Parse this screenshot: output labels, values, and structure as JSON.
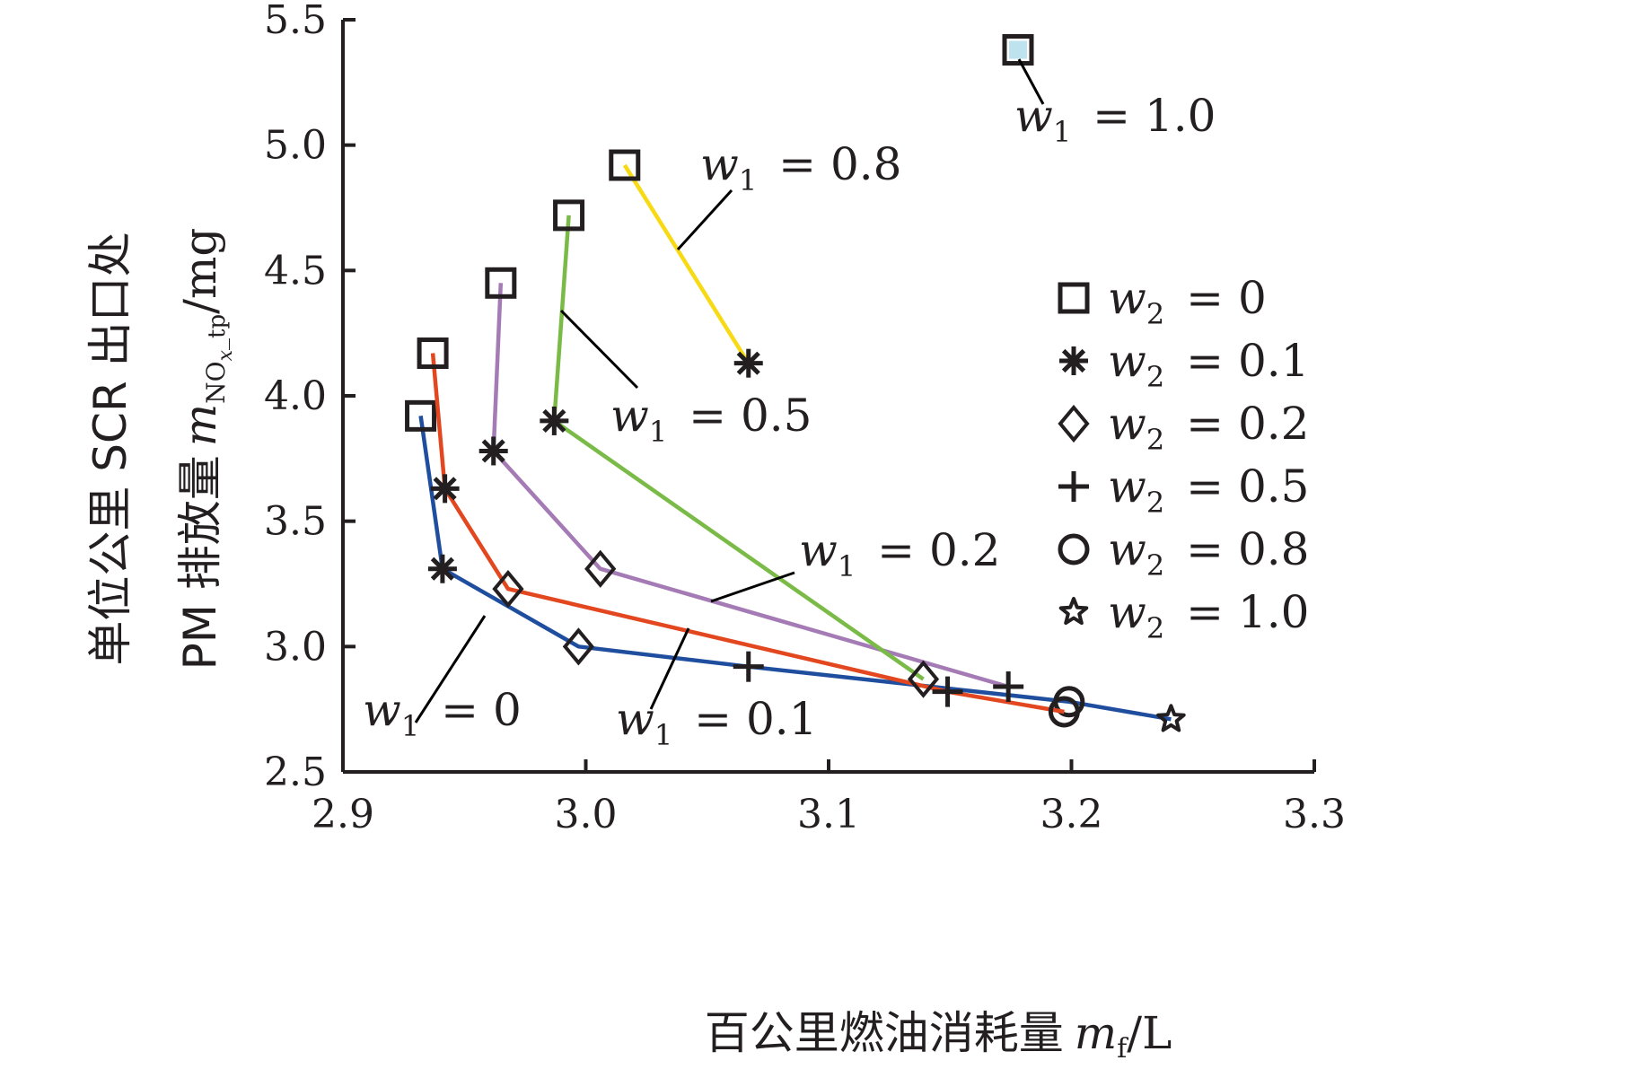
{
  "chart_data": {
    "type": "line",
    "xlabel": {
      "main": "百公里燃油消耗量",
      "var": "m",
      "sub": "f",
      "unit": "/L"
    },
    "ylabel": {
      "line1": "单位公里 SCR 出口处",
      "line2_main": "PM 排放量",
      "var": "m",
      "sub": "NO",
      "subsub": "x",
      "sub2": "_tp",
      "unit": "/mg"
    },
    "xlim": [
      2.9,
      3.3
    ],
    "ylim": [
      2.5,
      5.5
    ],
    "x_ticks": [
      2.9,
      3.0,
      3.1,
      3.2,
      3.3
    ],
    "y_ticks": [
      2.5,
      3.0,
      3.5,
      4.0,
      4.5,
      5.0,
      5.5
    ],
    "x_tick_labels": [
      "2.9",
      "3.0",
      "3.1",
      "3.2",
      "3.3"
    ],
    "y_tick_labels": [
      "2.5",
      "3.0",
      "3.5",
      "4.0",
      "4.5",
      "5.0",
      "5.5"
    ],
    "grid": false,
    "legend_position": "right",
    "legend": [
      {
        "marker": "square",
        "var": "w",
        "sub": "2",
        "text": "= 0"
      },
      {
        "marker": "asterisk",
        "var": "w",
        "sub": "2",
        "text": "= 0.1"
      },
      {
        "marker": "diamond",
        "var": "w",
        "sub": "2",
        "text": "= 0.2"
      },
      {
        "marker": "plus",
        "var": "w",
        "sub": "2",
        "text": "= 0.5"
      },
      {
        "marker": "circle",
        "var": "w",
        "sub": "2",
        "text": "= 0.8"
      },
      {
        "marker": "star",
        "var": "w",
        "sub": "2",
        "text": "= 1.0"
      }
    ],
    "series": [
      {
        "label": {
          "var": "w",
          "sub": "1",
          "text": "= 0"
        },
        "color": "#1f4e9e",
        "points": [
          {
            "x": 2.932,
            "y": 3.92,
            "marker": "square"
          },
          {
            "x": 2.941,
            "y": 3.31,
            "marker": "asterisk"
          },
          {
            "x": 2.997,
            "y": 3.0,
            "marker": "diamond"
          },
          {
            "x": 3.067,
            "y": 2.92,
            "marker": "plus"
          },
          {
            "x": 3.199,
            "y": 2.78,
            "marker": "circle"
          },
          {
            "x": 3.241,
            "y": 2.71,
            "marker": "star"
          }
        ]
      },
      {
        "label": {
          "var": "w",
          "sub": "1",
          "text": "= 0.1"
        },
        "color": "#e2471f",
        "points": [
          {
            "x": 2.937,
            "y": 4.17,
            "marker": "square"
          },
          {
            "x": 2.942,
            "y": 3.63,
            "marker": "asterisk"
          },
          {
            "x": 2.968,
            "y": 3.23,
            "marker": "diamond"
          },
          {
            "x": 3.149,
            "y": 2.82,
            "marker": "plus"
          },
          {
            "x": 3.197,
            "y": 2.74,
            "marker": "circle"
          }
        ]
      },
      {
        "label": {
          "var": "w",
          "sub": "1",
          "text": "= 0.2"
        },
        "color": "#a57bb6",
        "points": [
          {
            "x": 2.965,
            "y": 4.45,
            "marker": "square"
          },
          {
            "x": 2.962,
            "y": 3.78,
            "marker": "asterisk"
          },
          {
            "x": 3.006,
            "y": 3.31,
            "marker": "diamond"
          },
          {
            "x": 3.174,
            "y": 2.84,
            "marker": "plus"
          }
        ]
      },
      {
        "label": {
          "var": "w",
          "sub": "1",
          "text": "= 0.5"
        },
        "color": "#79bb46",
        "points": [
          {
            "x": 2.993,
            "y": 4.72,
            "marker": "square"
          },
          {
            "x": 2.987,
            "y": 3.9,
            "marker": "asterisk"
          },
          {
            "x": 3.139,
            "y": 2.87,
            "marker": "diamond"
          }
        ]
      },
      {
        "label": {
          "var": "w",
          "sub": "1",
          "text": "= 0.8"
        },
        "color": "#f7da14",
        "points": [
          {
            "x": 3.016,
            "y": 4.92,
            "marker": "square"
          },
          {
            "x": 3.067,
            "y": 4.13,
            "marker": "asterisk"
          }
        ]
      },
      {
        "label": {
          "var": "w",
          "sub": "1",
          "text": "= 1.0"
        },
        "color": "#2d8fb5",
        "points": [
          {
            "x": 3.178,
            "y": 5.38,
            "marker": "square"
          }
        ]
      }
    ]
  }
}
